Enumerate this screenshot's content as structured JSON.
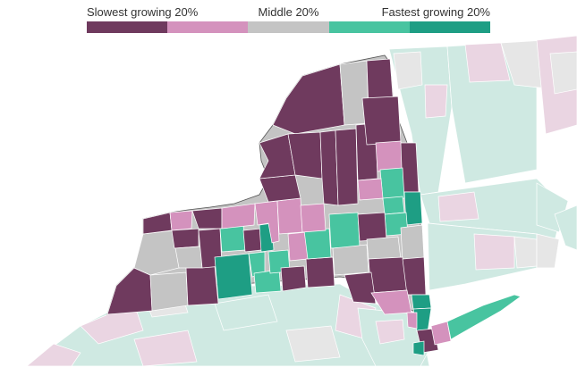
{
  "legend": {
    "slowest_label": "Slowest growing 20%",
    "middle_label": "Middle 20%",
    "fastest_label": "Fastest growing 20%",
    "bins": [
      {
        "name": "slowest",
        "color": "#6f3a5e"
      },
      {
        "name": "slow",
        "color": "#d492bd"
      },
      {
        "name": "middle",
        "color": "#c4c4c4"
      },
      {
        "name": "fast",
        "color": "#48c4a0"
      },
      {
        "name": "fastest",
        "color": "#1e9e84"
      }
    ]
  },
  "colors": {
    "background": "#ffffff",
    "outside_light_teal": "#cfe9e2",
    "outside_light_pink": "#ead5e2",
    "outside_light_gray": "#e6e6e6",
    "county_border": "#ffffff",
    "state_border": "#555555"
  }
}
